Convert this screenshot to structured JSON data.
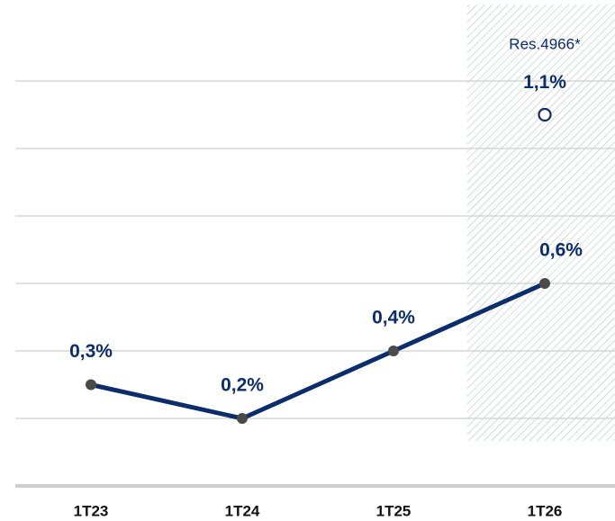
{
  "chart_data": {
    "type": "line",
    "categories": [
      "1T23",
      "1T24",
      "1T25",
      "1T26"
    ],
    "values": [
      0.3,
      0.2,
      0.4,
      0.6
    ],
    "value_labels": [
      "0,3%",
      "0,2%",
      "0,4%",
      "0,6%"
    ],
    "color": "#0c2d6b",
    "point_color": "#4a4a4a",
    "ylim": [
      0,
      1.2
    ],
    "yticks": [
      0,
      0.2,
      0.4,
      0.6,
      0.8,
      1.0,
      1.2
    ],
    "grid": true,
    "shaded_category": "1T26",
    "annotation": {
      "category": "1T26",
      "text": "Res.4966*",
      "value": 1.1,
      "value_label": "1,1%"
    }
  }
}
